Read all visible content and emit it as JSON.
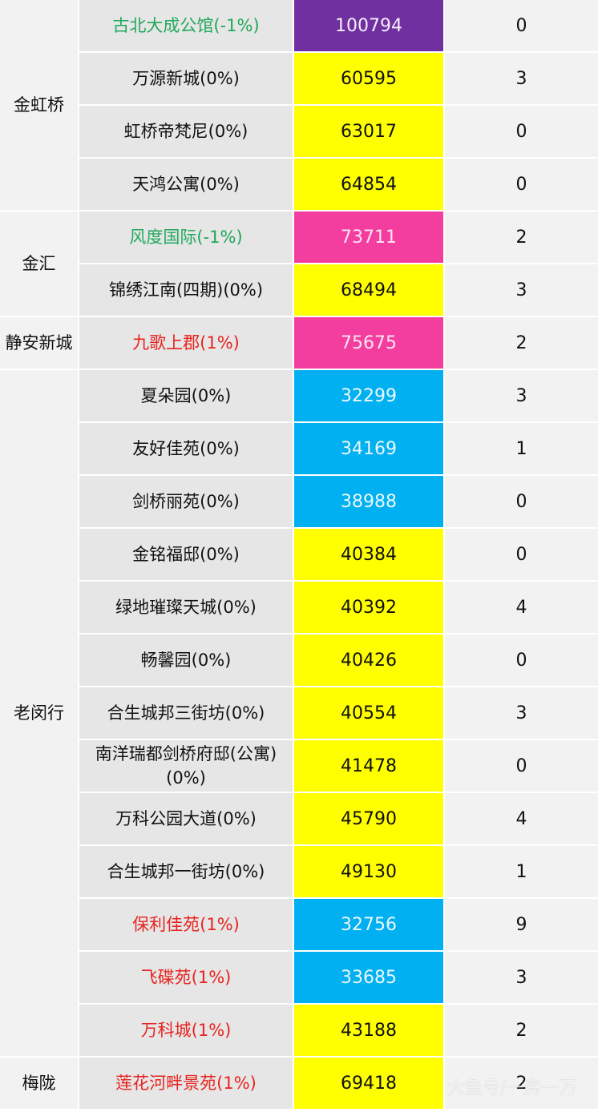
{
  "colors": {
    "purple": "#7030a0",
    "yellow": "#ffff00",
    "pink": "#f33ea0",
    "blue": "#00b0f0",
    "text_up": "#e8231f",
    "text_down": "#21a85c",
    "district_bg": "#f2f2f2",
    "name_bg": "#e6e6e6"
  },
  "districts": [
    {
      "name": "金虹桥",
      "row_start": 0,
      "row_count": 4
    },
    {
      "name": "金汇",
      "row_start": 4,
      "row_count": 2
    },
    {
      "name": "静安新城",
      "row_start": 6,
      "row_count": 1
    },
    {
      "name": "老闵行",
      "row_start": 7,
      "row_count": 13
    },
    {
      "name": "梅陇",
      "row_start": 20,
      "row_count": 1
    }
  ],
  "rows": [
    {
      "name": "古北大成公馆(-1%)",
      "trend": "down",
      "price": "100794",
      "price_bg": "purple",
      "count": "0"
    },
    {
      "name": "万源新城(0%)",
      "trend": "flat",
      "price": "60595",
      "price_bg": "yellow",
      "count": "3"
    },
    {
      "name": "虹桥帝梵尼(0%)",
      "trend": "flat",
      "price": "63017",
      "price_bg": "yellow",
      "count": "0"
    },
    {
      "name": "天鸿公寓(0%)",
      "trend": "flat",
      "price": "64854",
      "price_bg": "yellow",
      "count": "0"
    },
    {
      "name": "风度国际(-1%)",
      "trend": "down",
      "price": "73711",
      "price_bg": "pink",
      "count": "2"
    },
    {
      "name": "锦绣江南(四期)(0%)",
      "trend": "flat",
      "price": "68494",
      "price_bg": "yellow",
      "count": "3"
    },
    {
      "name": "九歌上郡(1%)",
      "trend": "up",
      "price": "75675",
      "price_bg": "pink",
      "count": "2"
    },
    {
      "name": "夏朵园(0%)",
      "trend": "flat",
      "price": "32299",
      "price_bg": "blue",
      "count": "3"
    },
    {
      "name": "友好佳苑(0%)",
      "trend": "flat",
      "price": "34169",
      "price_bg": "blue",
      "count": "1"
    },
    {
      "name": "剑桥丽苑(0%)",
      "trend": "flat",
      "price": "38988",
      "price_bg": "blue",
      "count": "0"
    },
    {
      "name": "金铭福邸(0%)",
      "trend": "flat",
      "price": "40384",
      "price_bg": "yellow",
      "count": "0"
    },
    {
      "name": "绿地璀璨天城(0%)",
      "trend": "flat",
      "price": "40392",
      "price_bg": "yellow",
      "count": "4"
    },
    {
      "name": "畅馨园(0%)",
      "trend": "flat",
      "price": "40426",
      "price_bg": "yellow",
      "count": "0"
    },
    {
      "name": "合生城邦三街坊(0%)",
      "trend": "flat",
      "price": "40554",
      "price_bg": "yellow",
      "count": "3"
    },
    {
      "name": "南洋瑞都剑桥府邸(公寓)(0%)",
      "trend": "flat",
      "price": "41478",
      "price_bg": "yellow",
      "count": "0"
    },
    {
      "name": "万科公园大道(0%)",
      "trend": "flat",
      "price": "45790",
      "price_bg": "yellow",
      "count": "4"
    },
    {
      "name": "合生城邦一街坊(0%)",
      "trend": "flat",
      "price": "49130",
      "price_bg": "yellow",
      "count": "1"
    },
    {
      "name": "保利佳苑(1%)",
      "trend": "up",
      "price": "32756",
      "price_bg": "blue",
      "count": "9"
    },
    {
      "name": "飞碟苑(1%)",
      "trend": "up",
      "price": "33685",
      "price_bg": "blue",
      "count": "3"
    },
    {
      "name": "万科城(1%)",
      "trend": "up",
      "price": "43188",
      "price_bg": "yellow",
      "count": "2"
    },
    {
      "name": "莲花河畔景苑(1%)",
      "trend": "up",
      "price": "69418",
      "price_bg": "yellow",
      "count": "2"
    }
  ],
  "watermark": "大鱼号/一房一万"
}
